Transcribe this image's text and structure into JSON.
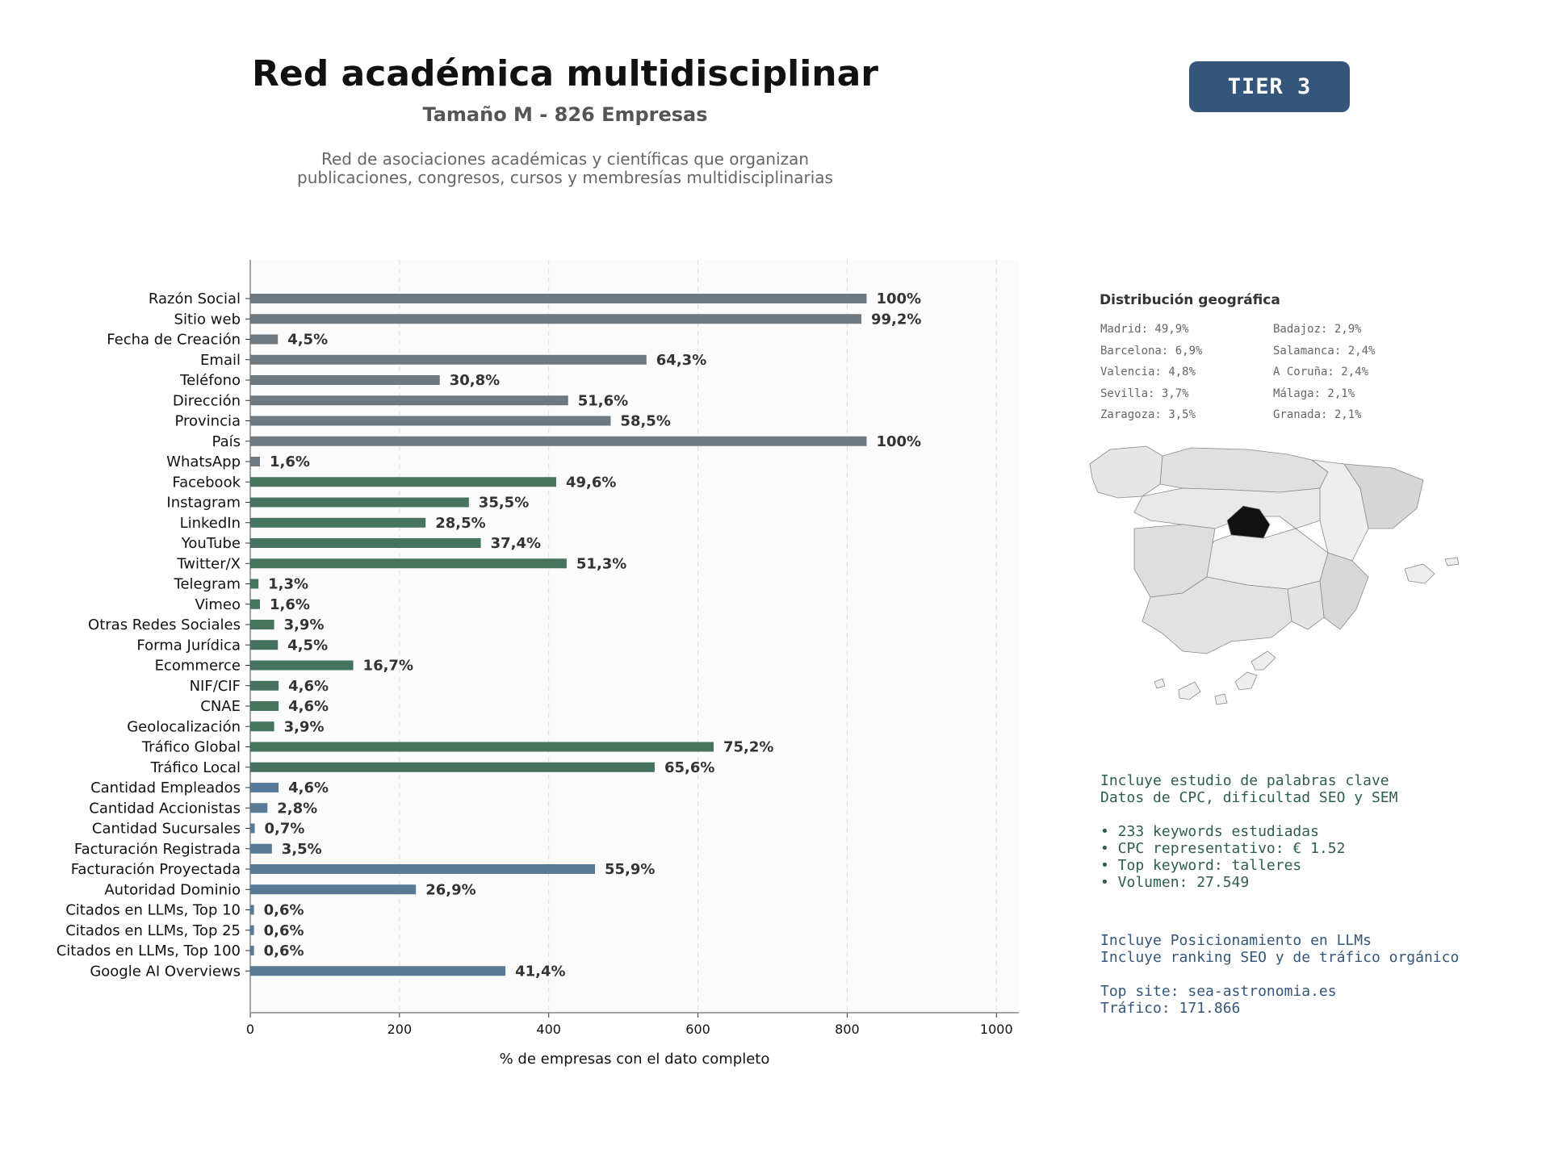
{
  "header": {
    "title": "Red académica multidisciplinar",
    "subtitle": "Tamaño M - 826 Empresas",
    "description_line1": "Red de asociaciones académicas y científicas que organizan",
    "description_line2": "publicaciones, congresos, cursos y membresías multidisciplinarias",
    "tier": "TIER 3"
  },
  "colors": {
    "gray": "#6e7880",
    "green": "#46735e",
    "blue": "#587a97",
    "tier_bg": "#34567a"
  },
  "chart_data": {
    "type": "bar",
    "orientation": "horizontal",
    "xlabel": "% de empresas con el dato completo",
    "xlim": [
      0,
      1030
    ],
    "xticks": [
      0,
      200,
      400,
      600,
      800,
      1000
    ],
    "grid": "vertical dashed",
    "categories": [
      "Razón Social",
      "Sitio web",
      "Fecha de Creación",
      "Email",
      "Teléfono",
      "Dirección",
      "Provincia",
      "País",
      "WhatsApp",
      "Facebook",
      "Instagram",
      "LinkedIn",
      "YouTube",
      "Twitter/X",
      "Telegram",
      "Vimeo",
      "Otras Redes Sociales",
      "Forma Jurídica",
      "Ecommerce",
      "NIF/CIF",
      "CNAE",
      "Geolocalización",
      "Tráfico Global",
      "Tráfico Local",
      "Cantidad Empleados",
      "Cantidad Accionistas",
      "Cantidad Sucursales",
      "Facturación Registrada",
      "Facturación Proyectada",
      "Autoridad Dominio",
      "Citados en LLMs, Top 10",
      "Citados en LLMs, Top 25",
      "Citados en LLMs, Top 100",
      "Google AI Overviews"
    ],
    "values": [
      826,
      819,
      37,
      531,
      254,
      426,
      483,
      826,
      13,
      410,
      293,
      235,
      309,
      424,
      11,
      13,
      32,
      37,
      138,
      38,
      38,
      32,
      621,
      542,
      38,
      23,
      6,
      29,
      462,
      222,
      5,
      5,
      5,
      342
    ],
    "labels": [
      "100%",
      "99,2%",
      "4,5%",
      "64,3%",
      "30,8%",
      "51,6%",
      "58,5%",
      "100%",
      "1,6%",
      "49,6%",
      "35,5%",
      "28,5%",
      "37,4%",
      "51,3%",
      "1,3%",
      "1,6%",
      "3,9%",
      "4,5%",
      "16,7%",
      "4,6%",
      "4,6%",
      "3,9%",
      "75,2%",
      "65,6%",
      "4,6%",
      "2,8%",
      "0,7%",
      "3,5%",
      "55,9%",
      "26,9%",
      "0,6%",
      "0,6%",
      "0,6%",
      "41,4%"
    ],
    "groups": [
      "gray",
      "gray",
      "gray",
      "gray",
      "gray",
      "gray",
      "gray",
      "gray",
      "gray",
      "green",
      "green",
      "green",
      "green",
      "green",
      "green",
      "green",
      "green",
      "green",
      "green",
      "green",
      "green",
      "green",
      "green",
      "green",
      "blue",
      "blue",
      "blue",
      "blue",
      "blue",
      "blue",
      "blue",
      "blue",
      "blue",
      "blue"
    ]
  },
  "geo": {
    "title": "Distribución geográfica",
    "col1": [
      "Madrid: 49,9%",
      "Barcelona: 6,9%",
      "Valencia: 4,8%",
      "Sevilla: 3,7%",
      "Zaragoza: 3,5%"
    ],
    "col2": [
      "Badajoz: 2,9%",
      "Salamanca: 2,4%",
      "A Coruña: 2,4%",
      "Málaga: 2,1%",
      "Granada: 2,1%"
    ]
  },
  "keywords": {
    "line1": "Incluye estudio de palabras clave",
    "line2": "Datos de CPC, dificultad SEO y SEM",
    "bullet1": "• 233 keywords estudiadas",
    "bullet2": "• CPC representativo: € 1.52",
    "bullet3": "• Top keyword: talleres",
    "bullet4": "• Volumen: 27.549"
  },
  "llm": {
    "line1": "Incluye Posicionamiento en LLMs",
    "line2": "Incluye ranking SEO y de tráfico orgánico",
    "top_site": "Top site: sea-astronomia.es",
    "traffic": "Tráfico: 171.866"
  }
}
